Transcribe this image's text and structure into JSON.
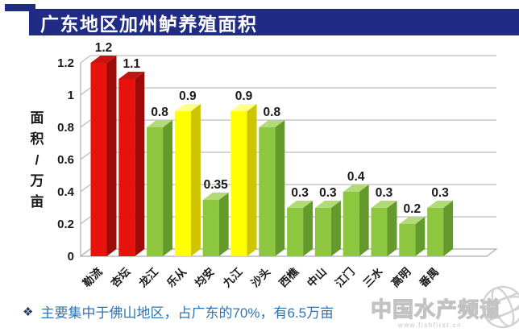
{
  "header": {
    "title": "广东地区加州鲈养殖面积",
    "bar_color": "#202B86"
  },
  "chart_data": {
    "type": "bar",
    "style": "3d-column",
    "title": "广东地区加州鲈养殖面积",
    "xlabel": "",
    "ylabel": "面积/万亩",
    "ylim": [
      0,
      1.2
    ],
    "yticks": [
      0,
      0.2,
      0.4,
      0.6,
      0.8,
      1,
      1.2
    ],
    "ytick_labels": [
      "0",
      "0.2",
      "0.4",
      "0.6",
      "0.8",
      "1",
      "1.2"
    ],
    "grid": true,
    "legend_position": "none",
    "categories": [
      "勒流",
      "杏坛",
      "龙江",
      "乐从",
      "均安",
      "九江",
      "沙头",
      "西樵",
      "中山",
      "江门",
      "三水",
      "高明",
      "番禺"
    ],
    "values": [
      1.2,
      1.1,
      0.8,
      0.9,
      0.35,
      0.9,
      0.8,
      0.3,
      0.3,
      0.4,
      0.3,
      0.2,
      0.3
    ],
    "value_labels": [
      "1.2",
      "1.1",
      "0.8",
      "0.9",
      "0.35",
      "0.9",
      "0.8",
      "0.3",
      "0.3",
      "0.4",
      "0.3",
      "0.2",
      "0.3"
    ],
    "bar_color_keys": [
      "red",
      "red",
      "green",
      "yellow",
      "green",
      "yellow",
      "green",
      "green",
      "green",
      "green",
      "green",
      "green",
      "green"
    ],
    "palette": {
      "red": {
        "front": "#E8120C",
        "side": "#9C0B08",
        "top": "#C41512"
      },
      "green": {
        "front": "#8DC63F",
        "side": "#649A2B",
        "top": "#B2DB77"
      },
      "yellow": {
        "front": "#FFFF00",
        "side": "#CFC400",
        "top": "#FFFF8C"
      }
    },
    "gridline_color": "#ADADAD",
    "label_color": "#1A1A1A"
  },
  "annotation": {
    "bullet": "❖",
    "bullet_color": "#1F3864",
    "text": "主要集中于佛山地区，占广东的70%，有6.5万亩",
    "text_color": "#2E74B5"
  },
  "watermark": {
    "name": "中国水产频道",
    "url": "www.fishfirst.cn"
  }
}
